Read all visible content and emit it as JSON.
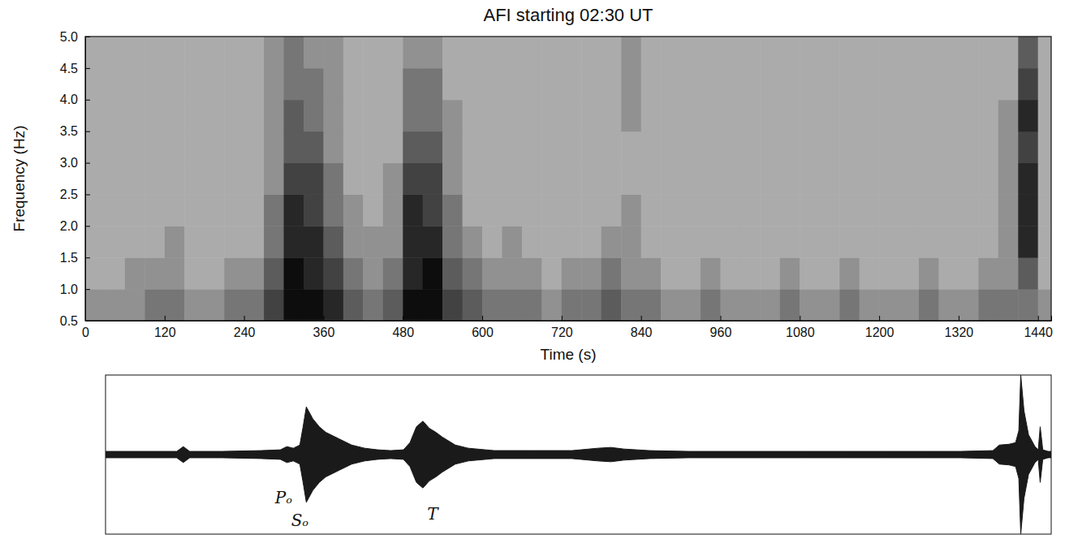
{
  "chart_data": [
    {
      "type": "heatmap",
      "title": "AFI starting 02:30 UT",
      "x_label": "Time (s)",
      "y_label": "Frequency (Hz)",
      "xlim": [
        0,
        1460
      ],
      "ylim": [
        0.5,
        5
      ],
      "xticks": [
        0,
        120,
        240,
        360,
        480,
        600,
        720,
        840,
        960,
        1080,
        1200,
        1320,
        1440
      ],
      "yticks": [
        0.5,
        {
          "value": 1,
          "label": "1.0"
        },
        1.5,
        {
          "value": 2,
          "label": "2.0"
        },
        2.5,
        {
          "value": 3,
          "label": "3.0"
        },
        3.5,
        {
          "value": 4,
          "label": "4.0"
        },
        4.5,
        {
          "value": 5,
          "label": "5.0"
        }
      ],
      "grid": false,
      "x_edges": [
        0,
        30,
        60,
        90,
        120,
        150,
        180,
        210,
        240,
        270,
        300,
        330,
        360,
        390,
        420,
        450,
        480,
        510,
        540,
        570,
        600,
        630,
        660,
        690,
        720,
        750,
        780,
        810,
        840,
        870,
        900,
        930,
        960,
        990,
        1020,
        1050,
        1080,
        1110,
        1140,
        1170,
        1200,
        1230,
        1260,
        1290,
        1320,
        1350,
        1380,
        1410,
        1440,
        1460
      ],
      "y_edges": [
        0.5,
        1,
        1.5,
        2,
        2.5,
        3,
        3.5,
        4,
        4.5,
        5
      ],
      "cells": [
        [
          4,
          4,
          4,
          5,
          5,
          4,
          4,
          5,
          5,
          7,
          9,
          9,
          8,
          6,
          5,
          6,
          9,
          9,
          7,
          6,
          5,
          5,
          5,
          4,
          5,
          5,
          6,
          5,
          5,
          4,
          4,
          5,
          4,
          4,
          4,
          5,
          4,
          4,
          5,
          4,
          4,
          4,
          5,
          4,
          4,
          5,
          5,
          5,
          4
        ],
        [
          3,
          3,
          4,
          4,
          4,
          3,
          3,
          4,
          4,
          6,
          9,
          8,
          7,
          5,
          4,
          5,
          8,
          9,
          6,
          5,
          4,
          4,
          4,
          3,
          4,
          4,
          5,
          4,
          4,
          3,
          3,
          4,
          3,
          3,
          3,
          4,
          3,
          3,
          4,
          3,
          3,
          3,
          4,
          3,
          3,
          4,
          4,
          6,
          3
        ],
        [
          3,
          3,
          3,
          3,
          4,
          3,
          3,
          3,
          3,
          5,
          8,
          8,
          6,
          4,
          4,
          4,
          8,
          8,
          5,
          4,
          3,
          4,
          3,
          3,
          3,
          3,
          4,
          4,
          3,
          3,
          3,
          3,
          3,
          3,
          3,
          3,
          3,
          3,
          3,
          3,
          3,
          3,
          3,
          3,
          3,
          3,
          4,
          8,
          3
        ],
        [
          3,
          3,
          3,
          3,
          3,
          3,
          3,
          3,
          3,
          5,
          8,
          7,
          5,
          4,
          3,
          4,
          8,
          7,
          5,
          3,
          3,
          3,
          3,
          3,
          3,
          3,
          3,
          4,
          3,
          3,
          3,
          3,
          3,
          3,
          3,
          3,
          3,
          3,
          3,
          3,
          3,
          3,
          3,
          3,
          3,
          3,
          4,
          8,
          3
        ],
        [
          3,
          3,
          3,
          3,
          3,
          3,
          3,
          3,
          3,
          4,
          7,
          7,
          5,
          3,
          3,
          4,
          7,
          7,
          4,
          3,
          3,
          3,
          3,
          3,
          3,
          3,
          3,
          3,
          3,
          3,
          3,
          3,
          3,
          3,
          3,
          3,
          3,
          3,
          3,
          3,
          3,
          3,
          3,
          3,
          3,
          3,
          4,
          8,
          3
        ],
        [
          3,
          3,
          3,
          3,
          3,
          3,
          3,
          3,
          3,
          4,
          6,
          6,
          4,
          3,
          3,
          3,
          6,
          6,
          4,
          3,
          3,
          3,
          3,
          3,
          3,
          3,
          3,
          3,
          3,
          3,
          3,
          3,
          3,
          3,
          3,
          3,
          3,
          3,
          3,
          3,
          3,
          3,
          3,
          3,
          3,
          3,
          4,
          7,
          3
        ],
        [
          3,
          3,
          3,
          3,
          3,
          3,
          3,
          3,
          3,
          4,
          6,
          5,
          4,
          3,
          3,
          3,
          5,
          5,
          4,
          3,
          3,
          3,
          3,
          3,
          3,
          3,
          3,
          4,
          3,
          3,
          3,
          3,
          3,
          3,
          3,
          3,
          3,
          3,
          3,
          3,
          3,
          3,
          3,
          3,
          3,
          3,
          4,
          8,
          3
        ],
        [
          3,
          3,
          3,
          3,
          3,
          3,
          3,
          3,
          3,
          4,
          5,
          5,
          4,
          3,
          3,
          3,
          5,
          5,
          3,
          3,
          3,
          3,
          3,
          3,
          3,
          3,
          3,
          4,
          3,
          3,
          3,
          3,
          3,
          3,
          3,
          3,
          3,
          3,
          3,
          3,
          3,
          3,
          3,
          3,
          3,
          3,
          3,
          7,
          3
        ],
        [
          3,
          3,
          3,
          3,
          3,
          3,
          3,
          3,
          3,
          4,
          5,
          4,
          4,
          3,
          3,
          3,
          4,
          4,
          3,
          3,
          3,
          3,
          3,
          3,
          3,
          3,
          3,
          4,
          3,
          3,
          3,
          3,
          3,
          3,
          3,
          3,
          3,
          3,
          3,
          3,
          3,
          3,
          3,
          3,
          3,
          3,
          3,
          6,
          3
        ]
      ]
    },
    {
      "type": "area",
      "tick_labels": false,
      "color": "#1a1a1a",
      "xlim": [
        0,
        1460
      ],
      "ylim": [
        -1,
        1
      ],
      "x": [
        0,
        60,
        110,
        120,
        130,
        180,
        240,
        270,
        280,
        290,
        300,
        305,
        310,
        320,
        330,
        340,
        360,
        380,
        400,
        420,
        440,
        460,
        470,
        480,
        490,
        500,
        510,
        520,
        540,
        560,
        600,
        660,
        720,
        760,
        780,
        800,
        840,
        900,
        960,
        1020,
        1080,
        1140,
        1200,
        1260,
        1320,
        1370,
        1380,
        1395,
        1405,
        1410,
        1413,
        1418,
        1425,
        1435,
        1440,
        1443,
        1447,
        1455,
        1460
      ],
      "values": [
        0.04,
        0.04,
        0.04,
        0.1,
        0.04,
        0.04,
        0.05,
        0.06,
        0.1,
        0.08,
        0.12,
        0.35,
        0.6,
        0.45,
        0.35,
        0.28,
        0.2,
        0.12,
        0.08,
        0.06,
        0.05,
        0.06,
        0.15,
        0.35,
        0.42,
        0.33,
        0.28,
        0.22,
        0.12,
        0.08,
        0.05,
        0.05,
        0.05,
        0.08,
        0.09,
        0.07,
        0.05,
        0.04,
        0.04,
        0.04,
        0.04,
        0.04,
        0.04,
        0.04,
        0.04,
        0.05,
        0.12,
        0.13,
        0.15,
        0.3,
        1.0,
        0.55,
        0.25,
        0.1,
        0.06,
        0.35,
        0.06,
        0.04,
        0.04
      ],
      "annotations": [
        {
          "text": "Pₒ",
          "x": 275
        },
        {
          "text": "Sₒ",
          "x": 300
        },
        {
          "text": "T",
          "x": 505
        }
      ]
    }
  ]
}
